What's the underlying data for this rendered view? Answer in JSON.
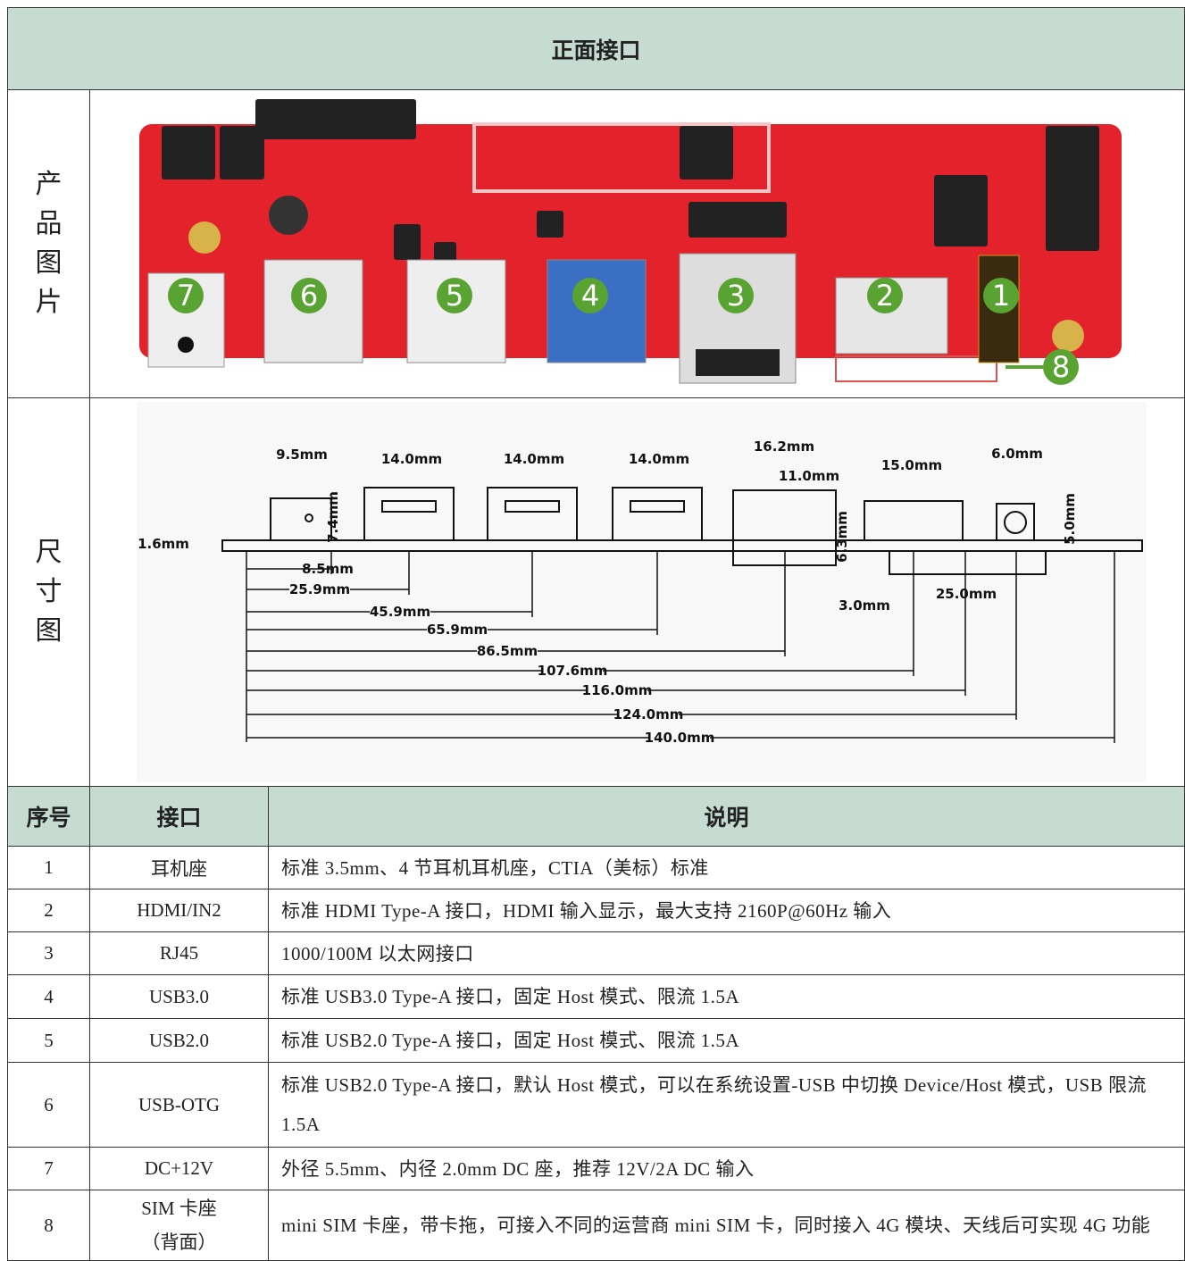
{
  "title": "正面接口",
  "photo_row": {
    "label": "产品图片",
    "callouts": [
      "1",
      "2",
      "3",
      "4",
      "5",
      "6",
      "7",
      "8"
    ]
  },
  "dimension_row": {
    "label": "尺寸图",
    "dimensions": [
      "9.5mm",
      "14.0mm",
      "14.0mm",
      "14.0mm",
      "16.2mm",
      "11.0mm",
      "15.0mm",
      "6.0mm",
      "1.6mm",
      "7.4mm",
      "6.3mm",
      "5.0mm",
      "8.5mm",
      "25.9mm",
      "45.9mm",
      "65.9mm",
      "86.5mm",
      "107.6mm",
      "116.0mm",
      "124.0mm",
      "140.0mm",
      "3.0mm",
      "25.0mm"
    ]
  },
  "table": {
    "header": [
      "序号",
      "接口",
      "说明"
    ],
    "rows": [
      [
        "1",
        "耳机座",
        "标准 3.5mm、4 节耳机耳机座，CTIA（美标）标准"
      ],
      [
        "2",
        "HDMI/IN2",
        "标准 HDMI  Type-A 接口，HDMI 输入显示，最大支持 2160P@60Hz 输入"
      ],
      [
        "3",
        "RJ45",
        "1000/100M 以太网接口"
      ],
      [
        "4",
        "USB3.0",
        "标准 USB3.0  Type-A 接口，固定 Host 模式、限流 1.5A"
      ],
      [
        "5",
        "USB2.0",
        "标准 USB2.0  Type-A 接口，固定 Host 模式、限流 1.5A"
      ],
      [
        "6",
        "USB-OTG",
        "标准 USB2.0  Type-A 接口，默认 Host 模式，可以在系统设置-USB 中切换 Device/Host 模式，USB 限流 1.5A"
      ],
      [
        "7",
        "DC+12V",
        "外径 5.5mm、内径 2.0mm DC 座，推荐 12V/2A DC 输入"
      ],
      [
        "8",
        [
          "SIM 卡座",
          "（背面）"
        ],
        "mini SIM 卡座，带卡拖，可接入不同的运营商 mini SIM 卡，同时接入 4G 模块、天线后可实现 4G 功能"
      ]
    ]
  }
}
